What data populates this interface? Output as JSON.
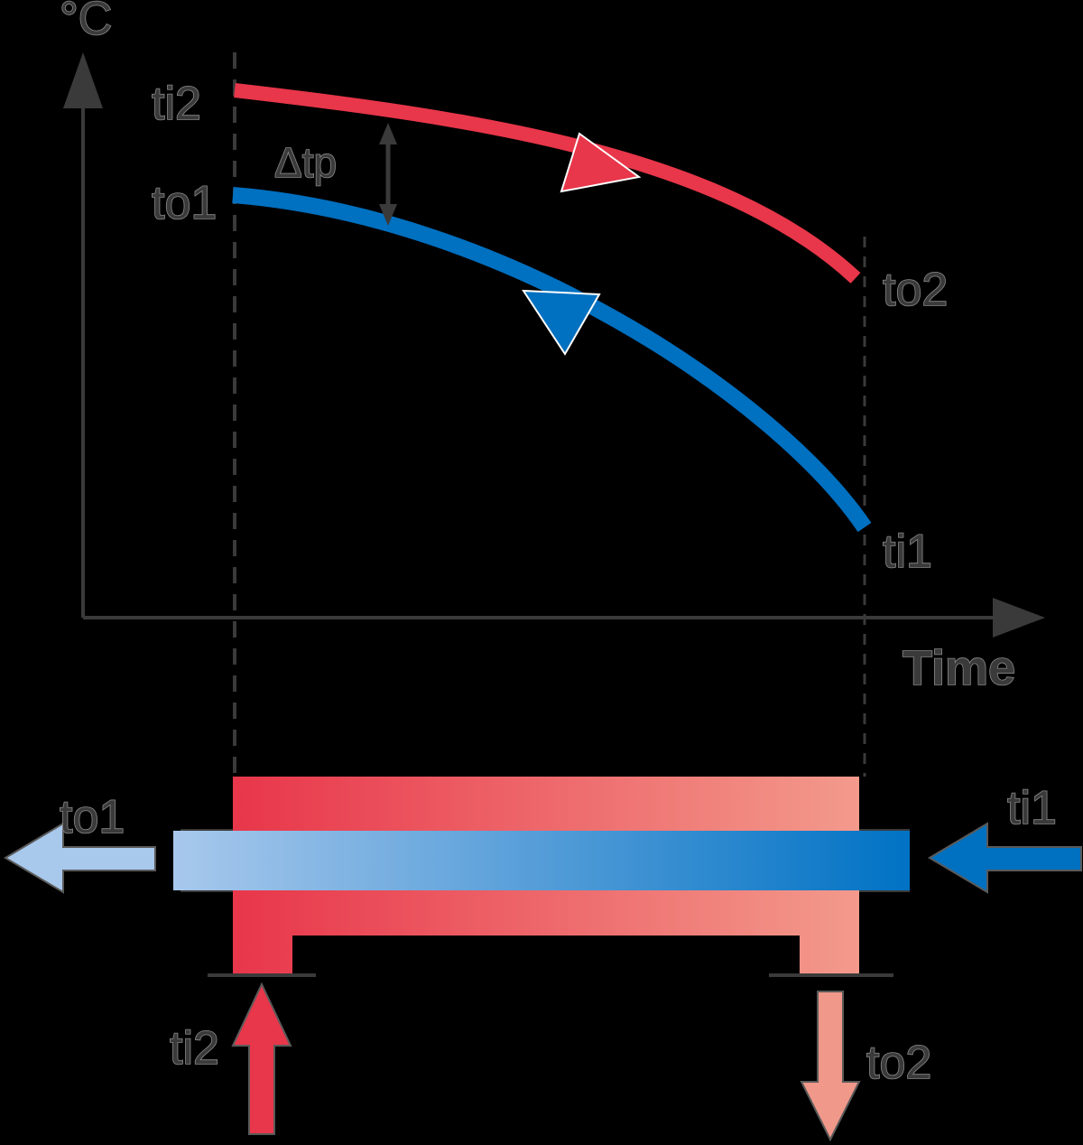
{
  "labels": {
    "y_axis_unit": "°C",
    "x_axis": "Time",
    "hot_in": "ti2",
    "hot_out": "to2",
    "cold_in": "ti1",
    "cold_out": "to1",
    "delta": "Δtp"
  },
  "colors": {
    "hot": "#e8364a",
    "hot_light": "#f0988a",
    "cold": "#0070c0",
    "cold_light": "#a8c8ec",
    "axis": "#3a3a3a",
    "background": "#000000"
  }
}
